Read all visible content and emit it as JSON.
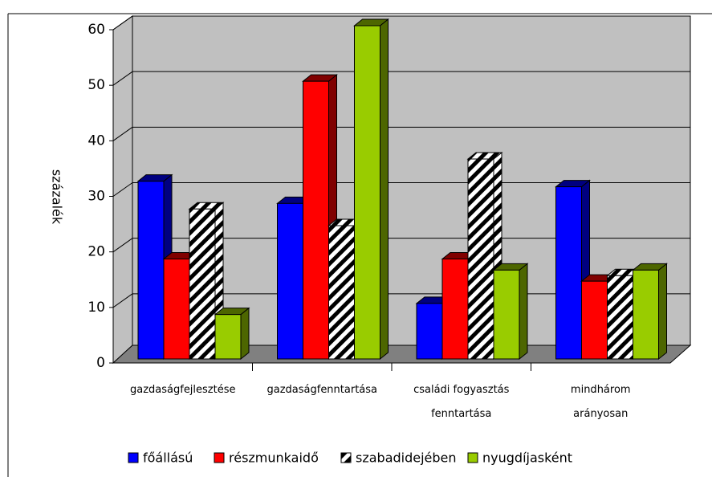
{
  "chart_data": {
    "type": "bar3d",
    "y_label": "százalék",
    "categories": [
      "gazdaságfejlesztése",
      "gazdaságfenntartása",
      "családi fogyasztás\nfenntartása",
      "mindhárom\narányosan"
    ],
    "series": [
      {
        "name": "főállású",
        "color": "#0000ff",
        "side": "#000080",
        "values": [
          32,
          28,
          10,
          31
        ]
      },
      {
        "name": "részmunkaidő",
        "color": "#ff0000",
        "side": "#800000",
        "values": [
          18,
          50,
          18,
          14
        ]
      },
      {
        "name": "szabadidejében",
        "color": "hatch",
        "side": "#444444",
        "values": [
          27,
          24,
          36,
          15
        ]
      },
      {
        "name": "nyugdíjasként",
        "color": "#99cc00",
        "side": "#4d6600",
        "values": [
          8,
          60,
          16,
          16
        ]
      }
    ],
    "ylim": [
      0,
      60
    ],
    "yticks": [
      0,
      10,
      20,
      30,
      40,
      50,
      60
    ],
    "grid": true
  }
}
